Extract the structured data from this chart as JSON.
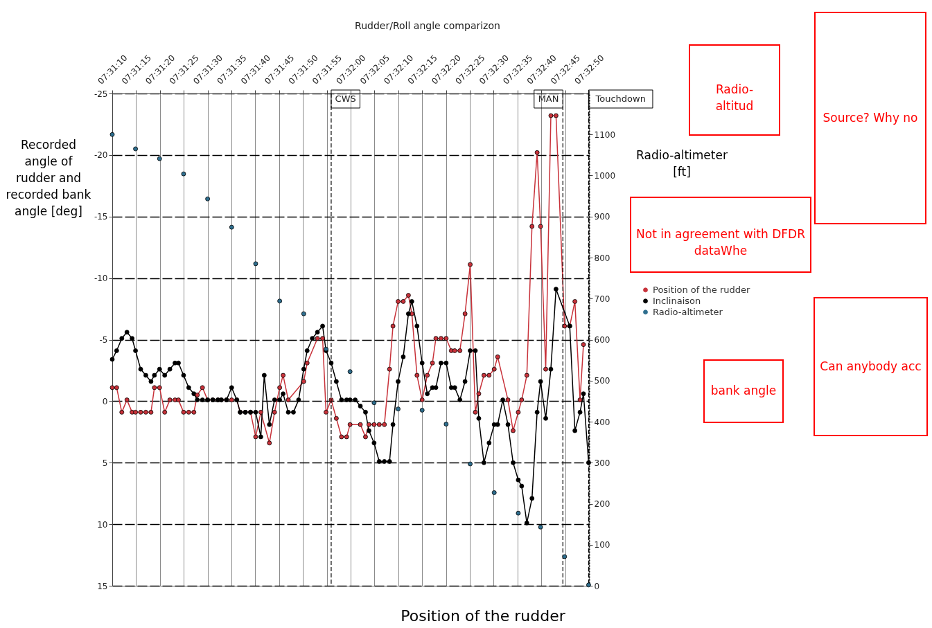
{
  "chart_data": {
    "type": "line",
    "title": "Rudder/Roll angle comparizon",
    "xlabel": "Position of the rudder",
    "ylabel": "Recorded angle of rudder and recorded bank angle [deg]",
    "y2label": "Radio-altimeter [ft]",
    "annotations": [
      "Radio-altitud",
      "Source? Why no",
      "Not in agreement with DFDR dataWhe",
      "bank angle",
      "Can anybody acc"
    ],
    "xlim": [
      7.519444,
      7.547222
    ],
    "xticks": [
      {
        "value": 7.519444,
        "label": "07:31:10"
      },
      {
        "value": 7.520833,
        "label": "07:31:15"
      },
      {
        "value": 7.522222,
        "label": "07:31:20"
      },
      {
        "value": 7.523611,
        "label": "07:31:25"
      },
      {
        "value": 7.525,
        "label": "07:31:30"
      },
      {
        "value": 7.526389,
        "label": "07:31:35"
      },
      {
        "value": 7.527778,
        "label": "07:31:40"
      },
      {
        "value": 7.529167,
        "label": "07:31:45"
      },
      {
        "value": 7.530556,
        "label": "07:31:50"
      },
      {
        "value": 7.531944,
        "label": "07:31:55"
      },
      {
        "value": 7.533333,
        "label": "07:32:00"
      },
      {
        "value": 7.534722,
        "label": "07:32:05"
      },
      {
        "value": 7.536111,
        "label": "07:32:10"
      },
      {
        "value": 7.5375,
        "label": "07:32:15"
      },
      {
        "value": 7.538889,
        "label": "07:32:20"
      },
      {
        "value": 7.540278,
        "label": "07:32:25"
      },
      {
        "value": 7.541667,
        "label": "07:32:30"
      },
      {
        "value": 7.543056,
        "label": "07:32:35"
      },
      {
        "value": 7.544444,
        "label": "07:32:40"
      },
      {
        "value": 7.545833,
        "label": "07:32:45"
      },
      {
        "value": 7.547222,
        "label": "07:32:50"
      }
    ],
    "ylim": [
      15,
      -25
    ],
    "yticks": [
      -25,
      -20,
      -15,
      -10,
      -5,
      0,
      5,
      10,
      15
    ],
    "y2lim": [
      0,
      1200
    ],
    "y2ticks": [
      0,
      100,
      200,
      300,
      400,
      500,
      600,
      700,
      800,
      900,
      1000,
      1100
    ],
    "grid": true,
    "legend": "right",
    "marker": "circle",
    "series": [
      {
        "name": "Position of the rudder",
        "color": "#c8323a",
        "x": [
          7.519444,
          7.5197,
          7.52,
          7.5203,
          7.5206,
          7.5208,
          7.5211,
          7.5214,
          7.5217,
          7.5219,
          7.5222,
          7.5225,
          7.5228,
          7.5231,
          7.5233,
          7.5236,
          7.5239,
          7.5242,
          7.5244,
          7.5247,
          7.525,
          7.5253,
          7.5256,
          7.5258,
          7.5261,
          7.5264,
          7.5267,
          7.5269,
          7.5272,
          7.5275,
          7.5278,
          7.5281,
          7.5286,
          7.5289,
          7.5292,
          7.5294,
          7.5297,
          7.5306,
          7.5308,
          7.5314,
          7.5317,
          7.5319,
          7.5322,
          7.5325,
          7.5328,
          7.5331,
          7.5333,
          7.5339,
          7.5342,
          7.5344,
          7.5347,
          7.535,
          7.5353,
          7.5356,
          7.5358,
          7.5361,
          7.5364,
          7.5367,
          7.5369,
          7.5372,
          7.5375,
          7.5378,
          7.5381,
          7.5383,
          7.5386,
          7.5389,
          7.5392,
          7.5394,
          7.5397,
          7.54,
          7.5403,
          7.5406,
          7.5408,
          7.5411,
          7.5414,
          7.5417,
          7.5419,
          7.5425,
          7.5428,
          7.5431,
          7.5433,
          7.5436,
          7.5439,
          7.5442,
          7.5444,
          7.5447,
          7.545,
          7.5453,
          7.5458,
          7.5461,
          7.5464,
          7.5467,
          7.5469
        ],
        "values": [
          -1.1,
          -1.1,
          0.9,
          -0.1,
          0.9,
          0.9,
          0.9,
          0.9,
          0.9,
          -1.1,
          -1.1,
          0.9,
          -0.1,
          -0.1,
          -0.1,
          0.9,
          0.9,
          0.9,
          -0.5,
          -1.1,
          -0.1,
          -0.1,
          -0.1,
          -0.1,
          -0.1,
          -0.1,
          -0.1,
          0.9,
          0.9,
          0.9,
          2.9,
          0.9,
          3.4,
          0.9,
          -1.1,
          -2.1,
          -0.1,
          -1.6,
          -3.1,
          -5.1,
          -5.1,
          0.9,
          -0.1,
          1.4,
          2.9,
          2.9,
          1.9,
          1.9,
          2.9,
          1.9,
          1.9,
          1.9,
          1.9,
          -2.6,
          -6.1,
          -8.1,
          -8.1,
          -8.6,
          -7.1,
          -2.1,
          -0.1,
          -2.1,
          -3.1,
          -5.1,
          -5.1,
          -5.1,
          -4.1,
          -4.1,
          -4.1,
          -7.1,
          -11.1,
          0.9,
          -0.6,
          -2.1,
          -2.1,
          -2.6,
          -3.6,
          -0.1,
          2.4,
          0.9,
          -0.1,
          -2.1,
          -14.2,
          -20.2,
          -14.2,
          -2.6,
          -23.2,
          -23.2,
          -6.1,
          -6.1,
          -8.1,
          -0.1,
          -4.6
        ]
      },
      {
        "name": "Inclinaison",
        "color": "#000000",
        "x": [
          7.519444,
          7.5197,
          7.52,
          7.5203,
          7.5206,
          7.5208,
          7.5211,
          7.5214,
          7.5217,
          7.5219,
          7.5222,
          7.5225,
          7.5228,
          7.5231,
          7.5233,
          7.5236,
          7.5239,
          7.5242,
          7.5244,
          7.5247,
          7.525,
          7.5253,
          7.5256,
          7.5258,
          7.5261,
          7.5264,
          7.5267,
          7.5269,
          7.5272,
          7.5275,
          7.5278,
          7.5281,
          7.5283,
          7.5286,
          7.5289,
          7.5292,
          7.5294,
          7.5297,
          7.53,
          7.5303,
          7.5306,
          7.5308,
          7.5311,
          7.5314,
          7.5317,
          7.5319,
          7.5322,
          7.5325,
          7.5328,
          7.5331,
          7.5333,
          7.5336,
          7.5339,
          7.5342,
          7.5344,
          7.5347,
          7.535,
          7.5353,
          7.5356,
          7.5358,
          7.5361,
          7.5364,
          7.5367,
          7.5369,
          7.5372,
          7.5375,
          7.5378,
          7.5381,
          7.5383,
          7.5386,
          7.5389,
          7.5392,
          7.5394,
          7.5397,
          7.54,
          7.5403,
          7.5406,
          7.5408,
          7.5411,
          7.5414,
          7.5417,
          7.5419,
          7.5422,
          7.5425,
          7.5428,
          7.5431,
          7.5433,
          7.5436,
          7.5439,
          7.5442,
          7.5444,
          7.5447,
          7.545,
          7.5453,
          7.5461,
          7.5464,
          7.5467,
          7.5469,
          7.5472
        ],
        "values": [
          -3.4,
          -4.1,
          -5.1,
          -5.6,
          -5.1,
          -4.1,
          -2.6,
          -2.1,
          -1.6,
          -2.1,
          -2.6,
          -2.1,
          -2.6,
          -3.1,
          -3.1,
          -2.1,
          -1.1,
          -0.6,
          -0.1,
          -0.1,
          -0.1,
          -0.1,
          -0.1,
          -0.1,
          -0.1,
          -1.1,
          -0.1,
          0.9,
          0.9,
          0.9,
          0.9,
          2.9,
          -2.1,
          1.9,
          -0.1,
          -0.1,
          -0.6,
          0.9,
          0.9,
          -0.1,
          -2.6,
          -4.1,
          -5.1,
          -5.6,
          -6.1,
          -4.1,
          -3.1,
          -1.6,
          -0.1,
          -0.1,
          -0.1,
          -0.1,
          0.4,
          0.9,
          2.4,
          3.4,
          4.9,
          4.9,
          4.9,
          1.9,
          -1.6,
          -3.6,
          -7.1,
          -8.1,
          -6.1,
          -3.1,
          -0.6,
          -1.1,
          -1.1,
          -3.1,
          -3.1,
          -1.1,
          -1.1,
          -0.1,
          -1.6,
          -4.1,
          -4.1,
          1.4,
          5.0,
          3.4,
          1.9,
          1.9,
          -0.1,
          1.9,
          5.0,
          6.4,
          6.9,
          9.9,
          7.9,
          0.9,
          -1.6,
          1.4,
          -2.6,
          -9.1,
          -6.1,
          2.4,
          0.9,
          -0.6,
          5.0
        ]
      },
      {
        "name": "Radio-altimeter",
        "color": "#2e6e8e",
        "type": "scatter",
        "axis": "y2",
        "x": [
          7.519444,
          7.5208,
          7.5222,
          7.5236,
          7.525,
          7.5264,
          7.5278,
          7.5292,
          7.5306,
          7.5319,
          7.5333,
          7.5347,
          7.5361,
          7.5375,
          7.5389,
          7.5403,
          7.5417,
          7.5431,
          7.5444,
          7.5458,
          7.5472
        ],
        "values": [
          1100,
          1065,
          1041,
          1004,
          943,
          874,
          785,
          694,
          663,
          577,
          522,
          446,
          431,
          428,
          394,
          297,
          227,
          177,
          143,
          71,
          2
        ]
      }
    ],
    "ref_lines": [
      {
        "axis": "x",
        "value": 7.5322,
        "label": "CWS",
        "color": "#000000",
        "line_style": "dashed"
      },
      {
        "axis": "x",
        "value": 7.5457,
        "label": "MAN",
        "color": "#000000",
        "line_style": "dashed"
      },
      {
        "axis": "x",
        "value": 7.5472,
        "label": "Touchdown",
        "color": "#000000",
        "line_style": "dashed"
      }
    ]
  }
}
